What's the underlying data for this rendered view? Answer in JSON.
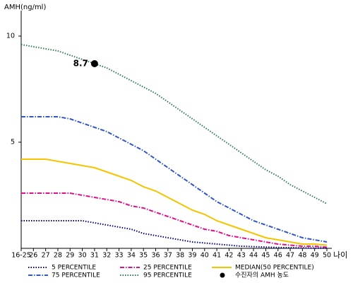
{
  "chart_data": {
    "type": "line",
    "y_label": "AMH(ng/ml)",
    "x_label": "나이",
    "categories": [
      "16-25",
      "26",
      "27",
      "28",
      "29",
      "30",
      "31",
      "32",
      "33",
      "34",
      "35",
      "36",
      "37",
      "38",
      "39",
      "40",
      "41",
      "42",
      "43",
      "44",
      "45",
      "46",
      "47",
      "48",
      "49",
      "50"
    ],
    "ylim": [
      0,
      11.2
    ],
    "yticks": [
      5,
      10
    ],
    "series": [
      {
        "name": "5 PERCENTILE",
        "color": "#000080",
        "style": "dotted",
        "values": [
          1.3,
          1.3,
          1.3,
          1.3,
          1.3,
          1.3,
          1.2,
          1.1,
          1.0,
          0.9,
          0.7,
          0.6,
          0.5,
          0.4,
          0.3,
          0.25,
          0.2,
          0.15,
          0.1,
          0.08,
          0.06,
          0.04,
          0.03,
          0.02,
          0.01,
          0.01
        ]
      },
      {
        "name": "25 PERCENTILE",
        "color": "#e0108a",
        "style": "dashdot",
        "values": [
          2.6,
          2.6,
          2.6,
          2.6,
          2.6,
          2.5,
          2.4,
          2.3,
          2.2,
          2.0,
          1.9,
          1.7,
          1.5,
          1.3,
          1.1,
          0.9,
          0.8,
          0.6,
          0.5,
          0.4,
          0.3,
          0.2,
          0.15,
          0.1,
          0.1,
          0.05
        ]
      },
      {
        "name": "MEDIAN(50 PERCENTILE)",
        "color": "#f5c400",
        "style": "solid",
        "values": [
          4.2,
          4.2,
          4.2,
          4.1,
          4.0,
          3.9,
          3.8,
          3.6,
          3.4,
          3.2,
          2.9,
          2.7,
          2.4,
          2.1,
          1.8,
          1.6,
          1.3,
          1.1,
          0.9,
          0.7,
          0.5,
          0.4,
          0.3,
          0.2,
          0.2,
          0.15
        ]
      },
      {
        "name": "75 PERCENTILE",
        "color": "#3355cc",
        "style": "dashdot",
        "values": [
          6.2,
          6.2,
          6.2,
          6.2,
          6.1,
          5.9,
          5.7,
          5.5,
          5.2,
          4.9,
          4.6,
          4.2,
          3.8,
          3.4,
          3.0,
          2.6,
          2.2,
          1.9,
          1.6,
          1.3,
          1.1,
          0.9,
          0.7,
          0.5,
          0.4,
          0.3
        ]
      },
      {
        "name": "95 PERCENTILE",
        "color": "#2e7d4f",
        "style": "dotted",
        "values": [
          9.6,
          9.5,
          9.4,
          9.3,
          9.1,
          8.9,
          8.7,
          8.5,
          8.2,
          7.9,
          7.6,
          7.3,
          6.9,
          6.5,
          6.1,
          5.7,
          5.3,
          4.9,
          4.5,
          4.1,
          3.7,
          3.4,
          3.0,
          2.7,
          2.4,
          2.1
        ]
      },
      {
        "name": "수진자의 AMH 농도",
        "color": "#000000",
        "style": "point",
        "values": [
          null,
          null,
          null,
          null,
          null,
          null,
          8.7,
          null,
          null,
          null,
          null,
          null,
          null,
          null,
          null,
          null,
          null,
          null,
          null,
          null,
          null,
          null,
          null,
          null,
          null,
          null
        ],
        "value_labels": [
          null,
          null,
          null,
          null,
          null,
          null,
          "8.7",
          null,
          null,
          null,
          null,
          null,
          null,
          null,
          null,
          null,
          null,
          null,
          null,
          null,
          null,
          null,
          null,
          null,
          null,
          null
        ]
      }
    ]
  }
}
